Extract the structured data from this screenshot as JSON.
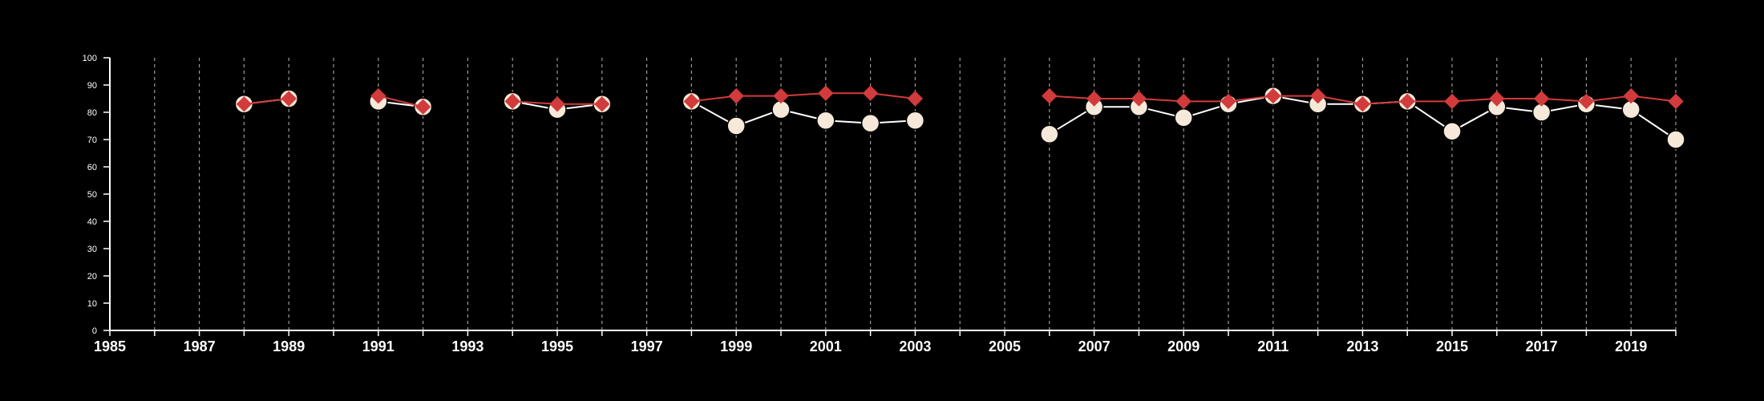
{
  "chart_data": {
    "type": "line",
    "title": "",
    "xlabel": "",
    "ylabel": "",
    "xlim": [
      1985,
      2020
    ],
    "ylim": [
      0,
      100
    ],
    "x_tick_labels": [
      "1985",
      "1987",
      "1989",
      "1991",
      "1993",
      "1995",
      "1997",
      "1999",
      "2001",
      "2003",
      "2005",
      "2007",
      "2009",
      "2011",
      "2013",
      "2015",
      "2017",
      "2019"
    ],
    "y_tick_labels": [
      "0",
      "10",
      "20",
      "30",
      "40",
      "50",
      "60",
      "70",
      "80",
      "90",
      "100"
    ],
    "vertical_gridlines": "dashed, every year",
    "legend": "none",
    "colors": {
      "background": "#000000",
      "axes": "#ffffff",
      "grid": "#9a9a9a",
      "series_red": "#d23b3b",
      "series_cream_fill": "#f6e9d9",
      "series_cream_line": "#ffffff"
    },
    "series": [
      {
        "marker": "circle",
        "color": "#f6e9d9",
        "segments": [
          [
            [
              1988,
              83
            ],
            [
              1989,
              85
            ]
          ],
          [
            [
              1991,
              84
            ],
            [
              1992,
              82
            ]
          ],
          [
            [
              1994,
              84
            ],
            [
              1995,
              81
            ],
            [
              1996,
              83
            ]
          ],
          [
            [
              1998,
              84
            ],
            [
              1999,
              75
            ],
            [
              2000,
              81
            ],
            [
              2001,
              77
            ],
            [
              2002,
              76
            ],
            [
              2003,
              77
            ]
          ],
          [
            [
              2006,
              72
            ],
            [
              2007,
              82
            ],
            [
              2008,
              82
            ],
            [
              2009,
              78
            ],
            [
              2010,
              83
            ],
            [
              2011,
              86
            ],
            [
              2012,
              83
            ],
            [
              2013,
              83
            ],
            [
              2014,
              84
            ],
            [
              2015,
              73
            ],
            [
              2016,
              82
            ],
            [
              2017,
              80
            ],
            [
              2018,
              83
            ],
            [
              2019,
              81
            ],
            [
              2020,
              70
            ]
          ]
        ]
      },
      {
        "marker": "diamond",
        "color": "#d23b3b",
        "segments": [
          [
            [
              1988,
              83
            ],
            [
              1989,
              85
            ]
          ],
          [
            [
              1991,
              86
            ],
            [
              1992,
              82
            ]
          ],
          [
            [
              1994,
              84
            ],
            [
              1995,
              83
            ],
            [
              1996,
              83
            ]
          ],
          [
            [
              1998,
              84
            ],
            [
              1999,
              86
            ],
            [
              2000,
              86
            ],
            [
              2001,
              87
            ],
            [
              2002,
              87
            ],
            [
              2003,
              85
            ]
          ],
          [
            [
              2006,
              86
            ],
            [
              2007,
              85
            ],
            [
              2008,
              85
            ],
            [
              2009,
              84
            ],
            [
              2010,
              84
            ],
            [
              2011,
              86
            ],
            [
              2012,
              86
            ],
            [
              2013,
              83
            ],
            [
              2014,
              84
            ],
            [
              2015,
              84
            ],
            [
              2016,
              85
            ],
            [
              2017,
              85
            ],
            [
              2018,
              84
            ],
            [
              2019,
              86
            ],
            [
              2020,
              84
            ]
          ]
        ]
      }
    ]
  }
}
